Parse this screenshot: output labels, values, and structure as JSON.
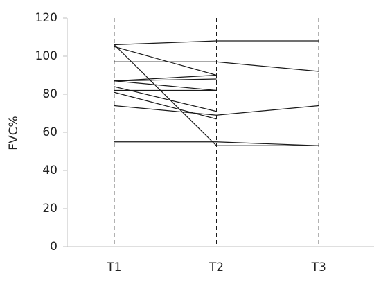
{
  "chart_data": {
    "type": "line",
    "y_label": "FVC%",
    "categories": [
      "T1",
      "T2",
      "T3"
    ],
    "ylim": [
      0,
      120
    ],
    "yticks": [
      0,
      20,
      40,
      60,
      80,
      100,
      120
    ],
    "category_lines": true,
    "series": [
      {
        "color": "#1a1a1a",
        "values": [
          106,
          108,
          108
        ]
      },
      {
        "color": "#1a1a1a",
        "values": [
          106,
          53,
          53
        ]
      },
      {
        "color": "#1a1a1a",
        "values": [
          105,
          90,
          null
        ]
      },
      {
        "color": "#1a1a1a",
        "values": [
          97,
          97,
          92
        ]
      },
      {
        "color": "#1a1a1a",
        "values": [
          87,
          90,
          null
        ]
      },
      {
        "color": "#1a1a1a",
        "values": [
          87,
          88,
          null
        ]
      },
      {
        "color": "#1a1a1a",
        "values": [
          87,
          82,
          null
        ]
      },
      {
        "color": "#1a1a1a",
        "values": [
          82,
          82,
          null
        ]
      },
      {
        "color": "#1a1a1a",
        "values": [
          84,
          71,
          null
        ]
      },
      {
        "color": "#1a1a1a",
        "values": [
          81,
          67,
          null
        ]
      },
      {
        "color": "#1a1a1a",
        "values": [
          74,
          69,
          74
        ]
      },
      {
        "color": "#1a1a1a",
        "values": [
          55,
          55,
          53
        ]
      }
    ]
  }
}
